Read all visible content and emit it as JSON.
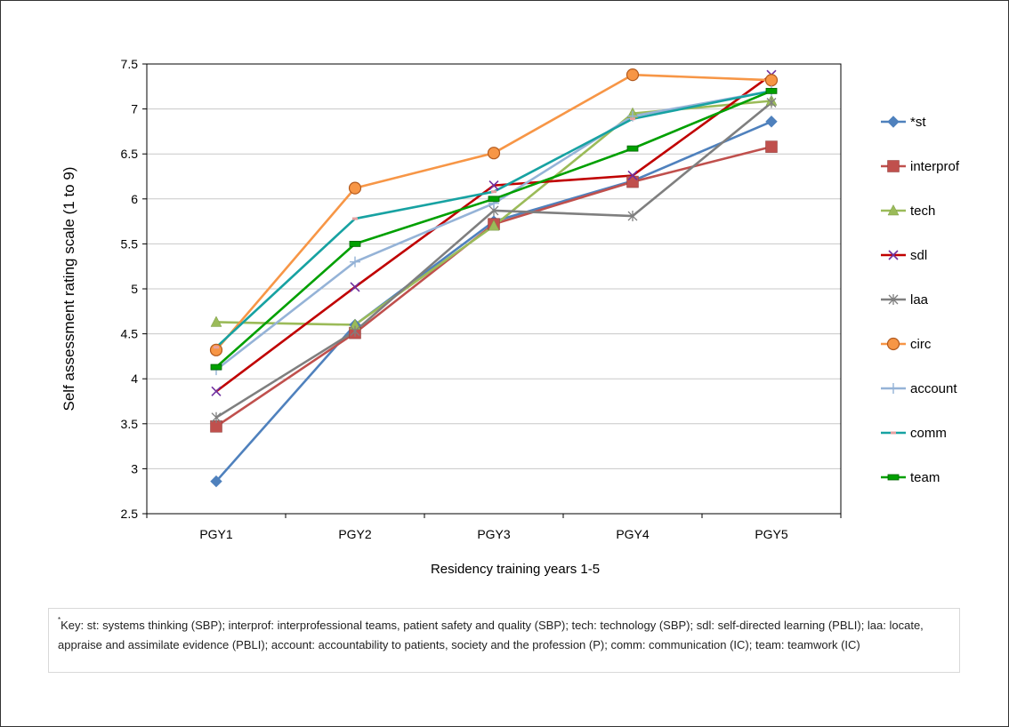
{
  "chart_data": {
    "type": "line",
    "title": "",
    "xlabel": "Residency training years 1-5",
    "ylabel": "Self assessment  rating scale (1 to 9)",
    "categories": [
      "PGY1",
      "PGY2",
      "PGY3",
      "PGY4",
      "PGY5"
    ],
    "ylim": [
      2.5,
      7.5
    ],
    "yticks": [
      "2.5",
      "3",
      "3.5",
      "4",
      "4.5",
      "5",
      "5.5",
      "6",
      "6.5",
      "7",
      "7.5"
    ],
    "grid": true,
    "legend_position": "right",
    "series": [
      {
        "name": "*st",
        "color": "#4F81BD",
        "marker": "diamond",
        "values": [
          2.86,
          4.6,
          5.75,
          6.2,
          6.86
        ]
      },
      {
        "name": "interprof",
        "color": "#C0504D",
        "marker": "square",
        "values": [
          3.47,
          4.51,
          5.72,
          6.19,
          6.58
        ]
      },
      {
        "name": "tech",
        "color": "#9BBB59",
        "marker": "triangle",
        "values": [
          4.63,
          4.6,
          5.7,
          6.95,
          7.09
        ]
      },
      {
        "name": "sdl",
        "color": "#C00000",
        "marker": "x",
        "values": [
          3.86,
          5.02,
          6.15,
          6.26,
          7.38
        ]
      },
      {
        "name": "laa",
        "color": "#7F7F7F",
        "marker": "star",
        "values": [
          3.57,
          4.53,
          5.87,
          5.81,
          7.07
        ]
      },
      {
        "name": "circ",
        "color": "#F79646",
        "marker": "circle",
        "values": [
          4.32,
          6.12,
          6.51,
          7.38,
          7.32
        ]
      },
      {
        "name": "account",
        "color": "#95B3D7",
        "marker": "plus",
        "values": [
          4.1,
          5.3,
          5.95,
          6.92,
          7.2
        ]
      },
      {
        "name": "comm",
        "color": "#17A2A2",
        "marker": "dash",
        "values": [
          4.35,
          5.78,
          6.08,
          6.89,
          7.2
        ]
      },
      {
        "name": "team",
        "color": "#00A000",
        "marker": "bar",
        "values": [
          4.13,
          5.5,
          6.0,
          6.56,
          7.2
        ]
      }
    ]
  },
  "key_note": {
    "asterisk": "*",
    "text": "Key: st: systems thinking (SBP); interprof: interprofessional teams, patient safety and quality (SBP); tech: technology (SBP); sdl: self-directed learning (PBLI); laa: locate, appraise and assimilate evidence (PBLI); account: accountability to patients, society and the profession (P); comm: communication (IC); team: teamwork (IC)"
  }
}
